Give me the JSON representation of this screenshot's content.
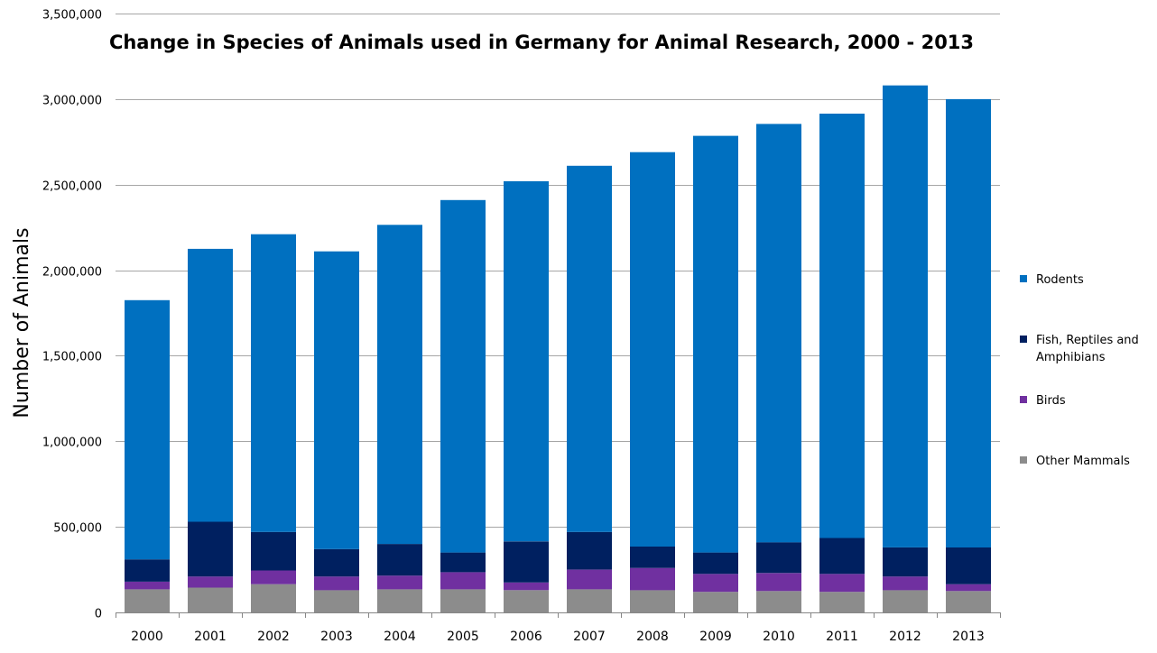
{
  "chart_data": {
    "type": "bar",
    "stacked": true,
    "title": "Change in Species of Animals used in Germany for Animal Research, 2000 - 2013",
    "xlabel": "",
    "ylabel": "Number of Animals",
    "ylim": [
      0,
      3500000
    ],
    "y_ticks": [
      0,
      500000,
      1000000,
      1500000,
      2000000,
      2500000,
      3000000,
      3500000
    ],
    "y_tick_labels": [
      "0",
      "500,000",
      "1,000,000",
      "1,500,000",
      "2,000,000",
      "2,500,000",
      "3,000,000",
      "3,500,000"
    ],
    "grid": true,
    "legend_position": "right",
    "categories": [
      "2000",
      "2001",
      "2002",
      "2003",
      "2004",
      "2005",
      "2006",
      "2007",
      "2008",
      "2009",
      "2010",
      "2011",
      "2012",
      "2013"
    ],
    "series": [
      {
        "name": "Other Mammals",
        "color": "#8c8c8c",
        "values": [
          135000,
          145000,
          165000,
          130000,
          135000,
          135000,
          130000,
          135000,
          130000,
          120000,
          125000,
          120000,
          130000,
          125000
        ]
      },
      {
        "name": "Birds",
        "color": "#7030a0",
        "values": [
          45000,
          65000,
          80000,
          80000,
          80000,
          100000,
          45000,
          115000,
          130000,
          105000,
          105000,
          105000,
          80000,
          40000
        ]
      },
      {
        "name": "Fish, Reptiles and Amphibians",
        "color": "#002060",
        "values": [
          130000,
          320000,
          225000,
          160000,
          185000,
          115000,
          240000,
          220000,
          125000,
          125000,
          180000,
          210000,
          170000,
          215000
        ]
      },
      {
        "name": "Rodents",
        "color": "#0070c0",
        "values": [
          1515000,
          1595000,
          1740000,
          1740000,
          1865000,
          2060000,
          2105000,
          2140000,
          2305000,
          2435000,
          2445000,
          2480000,
          2700000,
          2620000
        ]
      }
    ],
    "totals": [
      1825000,
      2125000,
      2210000,
      2110000,
      2265000,
      2410000,
      2520000,
      2610000,
      2690000,
      2785000,
      2855000,
      2915000,
      3080000,
      3000000
    ]
  },
  "colors": {
    "gridline": "#a6a6a6",
    "axis": "#868686",
    "background": "#ffffff"
  }
}
